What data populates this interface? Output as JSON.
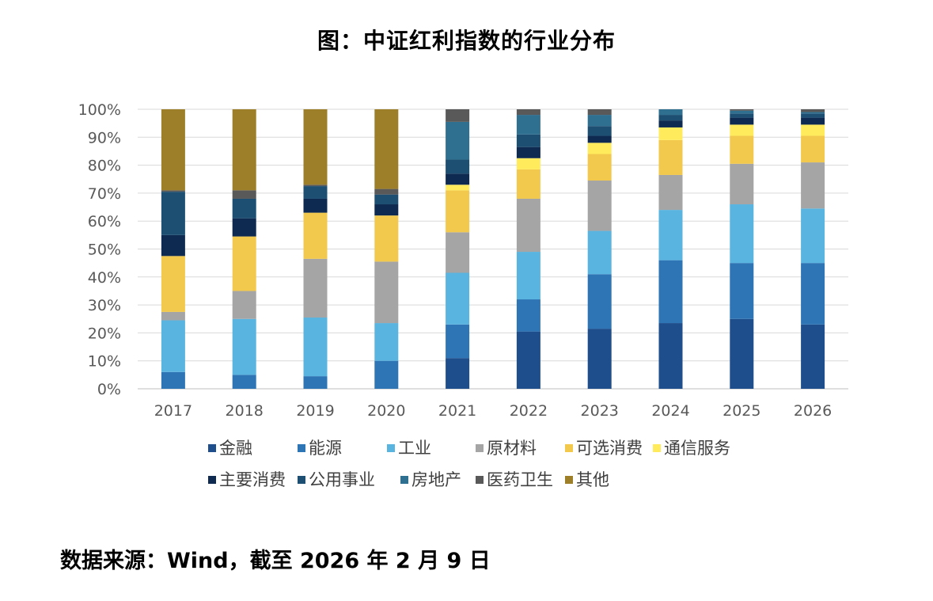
{
  "title": "图：中证红利指数的行业分布",
  "source_note": "数据来源：Wind，截至 2026 年 2 月 9 日",
  "chart_data": {
    "type": "bar",
    "stacked": true,
    "percent": true,
    "categories": [
      "2017",
      "2018",
      "2019",
      "2020",
      "2021",
      "2022",
      "2023",
      "2024",
      "2025",
      "2026"
    ],
    "y_ticks": [
      "0%",
      "10%",
      "20%",
      "30%",
      "40%",
      "50%",
      "60%",
      "70%",
      "80%",
      "90%",
      "100%"
    ],
    "ylim": [
      0,
      100
    ],
    "grid": true,
    "legend_position": "bottom",
    "series": [
      {
        "name": "金融",
        "color": "#1f4e8c",
        "values": [
          0,
          0,
          0,
          0,
          11,
          20.5,
          21.5,
          23.5,
          25,
          23
        ]
      },
      {
        "name": "能源",
        "color": "#2e75b6",
        "values": [
          6,
          5,
          4.5,
          10,
          12,
          11.5,
          19.5,
          22.5,
          20,
          22
        ]
      },
      {
        "name": "工业",
        "color": "#5ab4e0",
        "values": [
          18.5,
          20,
          21,
          13.5,
          18.5,
          17,
          15.5,
          18,
          21,
          19.5
        ]
      },
      {
        "name": "原材料",
        "color": "#a5a5a5",
        "values": [
          3,
          10,
          21,
          22,
          14.5,
          19,
          18,
          12.5,
          14.5,
          16.5
        ]
      },
      {
        "name": "可选消费",
        "color": "#f2c94c",
        "values": [
          20,
          19.5,
          16.5,
          16.5,
          15,
          10.5,
          9.5,
          12.5,
          10,
          9.5
        ]
      },
      {
        "name": "通信服务",
        "color": "#ffeb5c",
        "values": [
          0,
          0,
          0,
          0,
          2,
          4,
          4,
          4.5,
          4,
          4
        ]
      },
      {
        "name": "主要消费",
        "color": "#0e2a50",
        "values": [
          7.5,
          6.5,
          5,
          4,
          4,
          4,
          2.5,
          2.5,
          2.5,
          2.5
        ]
      },
      {
        "name": "公用事业",
        "color": "#1d4f73",
        "values": [
          15.5,
          7,
          4.5,
          3.5,
          5,
          4.5,
          3.5,
          2,
          1.5,
          1.5
        ]
      },
      {
        "name": "房地产",
        "color": "#2f6f8f",
        "values": [
          0,
          0,
          0,
          0,
          13.5,
          7,
          4,
          2,
          1,
          0.5
        ]
      },
      {
        "name": "医药卫生",
        "color": "#595959",
        "values": [
          0.5,
          3,
          0.5,
          2,
          4.5,
          2,
          2,
          0,
          0.5,
          1
        ]
      },
      {
        "name": "其他",
        "color": "#9d7f2a",
        "values": [
          29,
          29,
          27,
          28.5,
          0,
          0,
          0,
          0,
          0,
          0
        ]
      }
    ]
  }
}
